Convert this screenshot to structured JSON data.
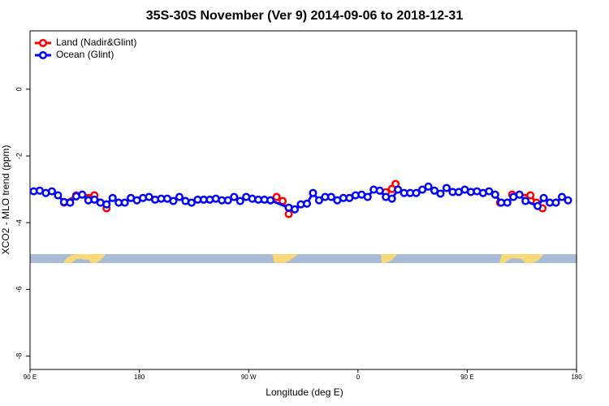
{
  "chart_data": {
    "type": "line",
    "title": "35S-30S November (Ver 9)   2014-09-06 to 2018-12-31",
    "x_label": "Longitude (deg E)",
    "y_label": "XCO2 - MLO trend (ppm)",
    "xlim": [
      90,
      540
    ],
    "xticks": [
      {
        "value": 90,
        "label": "90 E"
      },
      {
        "value": 180,
        "label": "180"
      },
      {
        "value": 270,
        "label": "90 W"
      },
      {
        "value": 360,
        "label": "0"
      },
      {
        "value": 450,
        "label": "90 E"
      },
      {
        "value": 540,
        "label": "180"
      }
    ],
    "ylim": [
      -8.4,
      1.75
    ],
    "yticks": [
      -8,
      -6,
      -4,
      -2,
      0
    ],
    "legend": "top-left",
    "series": [
      {
        "name": "Land (Nadir&Glint)",
        "color": "#ff0000",
        "x": [
          118,
          128,
          143,
          148,
          153,
          158,
          293,
          298,
          303,
          308,
          383,
          388,
          391,
          395,
          477,
          482,
          487,
          502,
          507,
          512
        ],
        "values": [
          -3.4,
          -3.18,
          -3.18,
          -3.4,
          -3.57,
          null,
          -3.23,
          -3.35,
          -3.74,
          null,
          -3.09,
          -2.99,
          -2.84,
          null,
          -3.4,
          null,
          -3.16,
          -3.18,
          -3.4,
          -3.57
        ]
      },
      {
        "name": "Ocean (Glint)",
        "color": "#0000ff",
        "x": [
          93,
          98,
          103,
          108,
          113,
          118,
          123,
          128,
          133,
          138,
          143,
          148,
          153,
          158,
          163,
          168,
          173,
          178,
          183,
          188,
          193,
          198,
          203,
          208,
          213,
          218,
          223,
          228,
          233,
          238,
          243,
          248,
          253,
          258,
          263,
          268,
          273,
          278,
          283,
          288,
          303,
          308,
          313,
          318,
          323,
          328,
          333,
          338,
          343,
          348,
          353,
          358,
          363,
          368,
          373,
          378,
          383,
          388,
          393,
          398,
          403,
          408,
          413,
          418,
          423,
          428,
          433,
          438,
          443,
          448,
          453,
          458,
          463,
          468,
          473,
          478,
          483,
          488,
          493,
          498,
          508,
          513,
          518,
          523,
          528,
          533
        ],
        "values": [
          -3.06,
          -3.04,
          -3.11,
          -3.06,
          -3.18,
          -3.38,
          -3.4,
          -3.21,
          -3.16,
          -3.33,
          -3.31,
          -3.4,
          -3.45,
          -3.26,
          -3.4,
          -3.4,
          -3.26,
          -3.33,
          -3.26,
          -3.23,
          -3.31,
          -3.28,
          -3.28,
          -3.35,
          -3.23,
          -3.35,
          -3.4,
          -3.31,
          -3.31,
          -3.31,
          -3.28,
          -3.33,
          -3.33,
          -3.23,
          -3.35,
          -3.23,
          -3.28,
          -3.31,
          -3.31,
          -3.33,
          -3.55,
          -3.6,
          -3.45,
          -3.43,
          -3.11,
          -3.33,
          -3.23,
          -3.23,
          -3.33,
          -3.26,
          -3.26,
          -3.18,
          -3.16,
          -3.23,
          -3.01,
          -3.04,
          -3.23,
          -3.28,
          -3.01,
          -3.11,
          -3.11,
          -3.11,
          -3.01,
          -2.92,
          -3.04,
          -3.13,
          -2.96,
          -3.08,
          -3.08,
          -3.01,
          -3.08,
          -3.06,
          -3.11,
          -3.06,
          -3.16,
          -3.4,
          -3.4,
          -3.23,
          -3.16,
          -3.35,
          -3.5,
          -3.26,
          -3.4,
          -3.4,
          -3.23,
          -3.33
        ]
      }
    ]
  }
}
